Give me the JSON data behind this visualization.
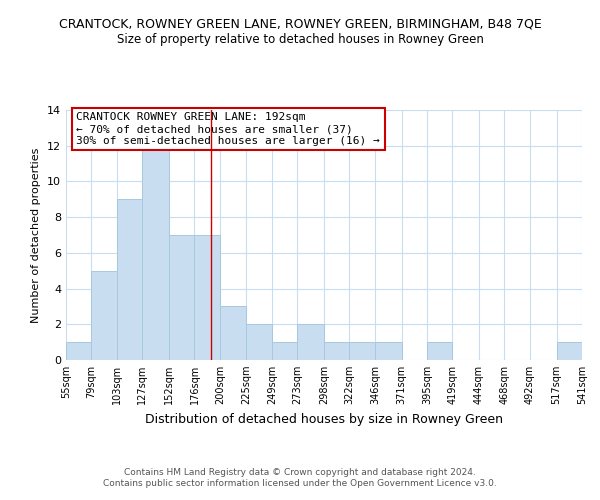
{
  "title": "CRANTOCK, ROWNEY GREEN LANE, ROWNEY GREEN, BIRMINGHAM, B48 7QE",
  "subtitle": "Size of property relative to detached houses in Rowney Green",
  "xlabel": "Distribution of detached houses by size in Rowney Green",
  "ylabel": "Number of detached properties",
  "bar_color": "#c8ddf0",
  "bar_edge_color": "#a8c8e0",
  "highlight_color": "#cc0000",
  "bin_edges": [
    55,
    79,
    103,
    127,
    152,
    176,
    200,
    225,
    249,
    273,
    298,
    322,
    346,
    371,
    395,
    419,
    444,
    468,
    492,
    517,
    541
  ],
  "bin_labels": [
    "55sqm",
    "79sqm",
    "103sqm",
    "127sqm",
    "152sqm",
    "176sqm",
    "200sqm",
    "225sqm",
    "249sqm",
    "273sqm",
    "298sqm",
    "322sqm",
    "346sqm",
    "371sqm",
    "395sqm",
    "419sqm",
    "444sqm",
    "468sqm",
    "492sqm",
    "517sqm",
    "541sqm"
  ],
  "counts": [
    1,
    5,
    9,
    12,
    7,
    7,
    3,
    2,
    1,
    2,
    1,
    1,
    1,
    0,
    1,
    0,
    0,
    0,
    0,
    1
  ],
  "annotation_text": "CRANTOCK ROWNEY GREEN LANE: 192sqm\n← 70% of detached houses are smaller (37)\n30% of semi-detached houses are larger (16) →",
  "ylim": [
    0,
    14
  ],
  "yticks": [
    0,
    2,
    4,
    6,
    8,
    10,
    12,
    14
  ],
  "highlight_value": 192,
  "footer1": "Contains HM Land Registry data © Crown copyright and database right 2024.",
  "footer2": "Contains public sector information licensed under the Open Government Licence v3.0.",
  "background_color": "#ffffff",
  "grid_color": "#c8ddf0",
  "title_fontsize": 9,
  "subtitle_fontsize": 8.5,
  "xlabel_fontsize": 9,
  "ylabel_fontsize": 8,
  "tick_fontsize": 7,
  "annotation_fontsize": 8,
  "footer_fontsize": 6.5
}
